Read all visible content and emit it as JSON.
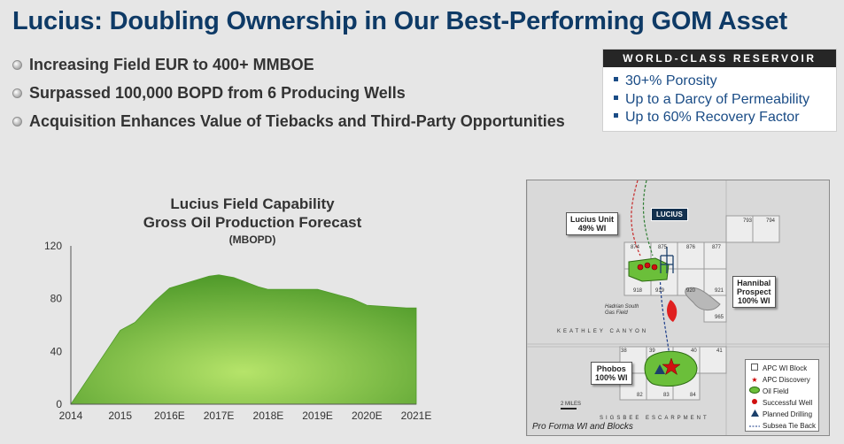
{
  "title": "Lucius: Doubling Ownership in Our Best-Performing GOM Asset",
  "bullets": [
    "Increasing Field EUR to 400+ MMBOE",
    "Surpassed 100,000 BOPD from 6 Producing Wells",
    "Acquisition Enhances Value of Tiebacks and Third-Party Opportunities"
  ],
  "reservoir": {
    "header": "WORLD-CLASS RESERVOIR",
    "items": [
      "30+% Porosity",
      "Up to a Darcy of Permeability",
      "Up to 60% Recovery Factor"
    ]
  },
  "chart_data": {
    "type": "area",
    "title": "Lucius Field Capability",
    "subtitle": "Gross Oil Production Forecast",
    "unit": "(MBOPD)",
    "categories": [
      "2014",
      "2015",
      "2016E",
      "2017E",
      "2018E",
      "2019E",
      "2020E",
      "2021E"
    ],
    "x": [
      2014.0,
      2014.5,
      2015.0,
      2015.3,
      2015.7,
      2016.0,
      2016.8,
      2017.0,
      2017.3,
      2017.8,
      2018.0,
      2018.7,
      2019.0,
      2019.7,
      2020.0,
      2020.8,
      2021.0
    ],
    "values": [
      0,
      28,
      56,
      62,
      78,
      88,
      97,
      98,
      96,
      89,
      87,
      87,
      87,
      80,
      75,
      73,
      73
    ],
    "yticks": [
      0,
      40,
      80,
      120
    ],
    "ylim": [
      0,
      120
    ],
    "xlim": [
      2014,
      2021
    ],
    "grid": false,
    "color_top": "#4f9a2a",
    "color_center": "#b6e46a"
  },
  "map": {
    "lucius_unit": "Lucius Unit",
    "lucius_unit_wi": "49% WI",
    "lucius_tag": "LUCIUS",
    "hannibal_1": "Hannibal",
    "hannibal_2": "Prospect",
    "hannibal_wi": "100% WI",
    "phobos": "Phobos",
    "phobos_wi": "100% WI",
    "hadrian_1": "Hadrian South",
    "hadrian_2": "Gas Field",
    "keathley": "KEATHLEY CANYON",
    "sigsbee": "SIGSBEE ESCARPMENT",
    "scale": "2 MILES",
    "pro_forma": "Pro Forma WI and Blocks",
    "blocks": {
      "b793": "793",
      "b794": "794",
      "b874": "874",
      "b875": "875",
      "b876": "876",
      "b877": "877",
      "b918": "918",
      "b919": "919",
      "b920": "920",
      "b921": "921",
      "b965": "965",
      "b38": "38",
      "b39": "39",
      "b40": "40",
      "b41": "41",
      "b82": "82",
      "b83": "83",
      "b84": "84"
    },
    "legend": [
      {
        "icon": "block-square-icon",
        "label": "APC WI Block"
      },
      {
        "icon": "discovery-star-icon",
        "label": "APC Discovery"
      },
      {
        "icon": "oil-field-icon",
        "label": "Oil Field"
      },
      {
        "icon": "successful-well-icon",
        "label": "Successful Well"
      },
      {
        "icon": "planned-drilling-icon",
        "label": "Planned Drilling"
      },
      {
        "icon": "tie-back-line-icon",
        "label": "Subsea Tie Back"
      }
    ]
  }
}
